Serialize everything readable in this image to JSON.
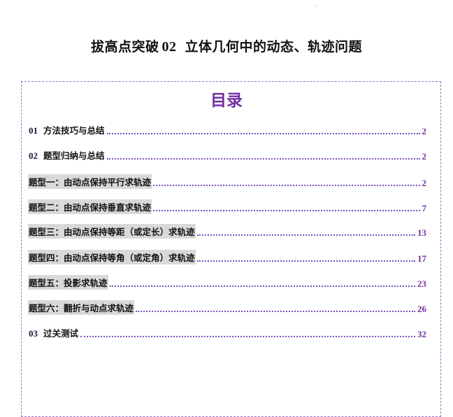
{
  "title": {
    "prefix": "拔高点突破",
    "number": "02",
    "text": "立体几何中的动态、轨迹问题"
  },
  "toc": {
    "heading": "目录",
    "entries": [
      {
        "num": "01",
        "label": "方法技巧与总结",
        "page": "2",
        "highlight": false
      },
      {
        "num": "02",
        "label": "题型归纳与总结",
        "page": "2",
        "highlight": false
      },
      {
        "num": "",
        "label": "题型一：由动点保持平行求轨迹",
        "page": "2",
        "highlight": true
      },
      {
        "num": "",
        "label": "题型二：由动点保持垂直求轨迹",
        "page": "7",
        "highlight": true
      },
      {
        "num": "",
        "label": "题型三：由动点保持等距（或定长）求轨迹",
        "page": "13",
        "highlight": true
      },
      {
        "num": "",
        "label": "题型四：由动点保持等角（或定角）求轨迹",
        "page": "17",
        "highlight": true
      },
      {
        "num": "",
        "label": "题型五：投影求轨迹",
        "page": "23",
        "highlight": true
      },
      {
        "num": "",
        "label": "题型六：翻折与动点求轨迹",
        "page": "26",
        "highlight": true
      },
      {
        "num": "03",
        "label": "过关测试",
        "page": "32",
        "highlight": false
      }
    ]
  },
  "colors": {
    "accent": "#7030a0",
    "border": "#9b6fcf",
    "highlight": "#d9d9d9"
  }
}
